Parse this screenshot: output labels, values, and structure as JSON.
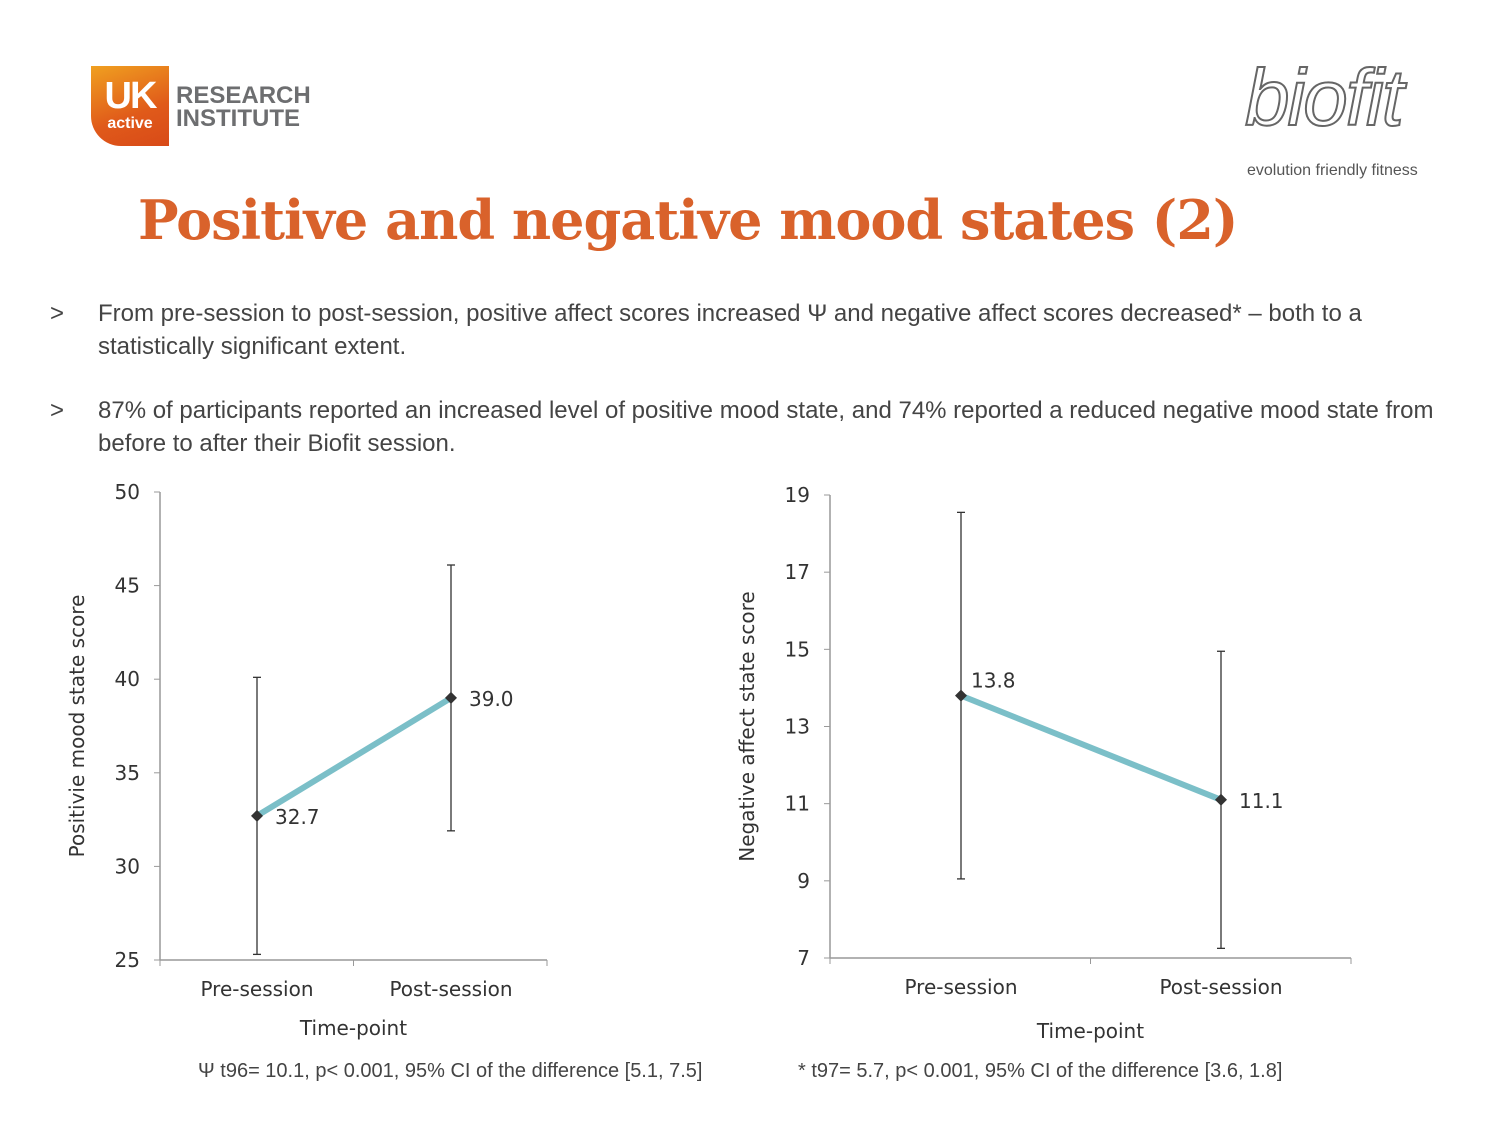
{
  "header": {
    "logo_left_main": "UK",
    "logo_left_sub": "active",
    "logo_left_text_line1": "RESEARCH",
    "logo_left_text_line2": "INSTITUTE",
    "logo_right": "biofit",
    "logo_right_tagline": "evolution friendly fitness"
  },
  "title": "Positive and negative mood states (2)",
  "bullets": [
    {
      "marker": ">",
      "text": "From pre-session to post-session, positive affect scores increased Ψ and negative affect scores decreased* – both to a statistically significant extent."
    },
    {
      "marker": ">",
      "text": "87% of participants reported an increased level of positive mood state, and 74% reported a reduced negative mood state from before to after their Biofit session."
    }
  ],
  "line_color": "#7bbfc8",
  "chart_data": [
    {
      "type": "line",
      "categories": [
        "Pre-session",
        "Post-session"
      ],
      "values": [
        32.7,
        39.0
      ],
      "value_labels": [
        "32.7",
        "39.0"
      ],
      "error_low": [
        25.3,
        31.9
      ],
      "error_high": [
        40.1,
        46.1
      ],
      "xlabel": "Time-point",
      "ylabel": "Positivie mood state score",
      "ylim": [
        25,
        50
      ],
      "yticks": [
        25,
        30,
        35,
        40,
        45,
        50
      ],
      "footnote": "Ψ t96= 10.1, p< 0.001, 95% CI of the difference [5.1, 7.5]"
    },
    {
      "type": "line",
      "categories": [
        "Pre-session",
        "Post-session"
      ],
      "values": [
        13.8,
        11.1
      ],
      "value_labels": [
        "13.8",
        "11.1"
      ],
      "error_low": [
        9.05,
        7.25
      ],
      "error_high": [
        18.55,
        14.95
      ],
      "xlabel": "Time-point",
      "ylabel": "Negative affect state score",
      "ylim": [
        7,
        19
      ],
      "yticks": [
        7,
        9,
        11,
        13,
        15,
        17,
        19
      ],
      "footnote": "* t97= 5.7, p< 0.001, 95% CI of the difference [3.6, 1.8]"
    }
  ]
}
